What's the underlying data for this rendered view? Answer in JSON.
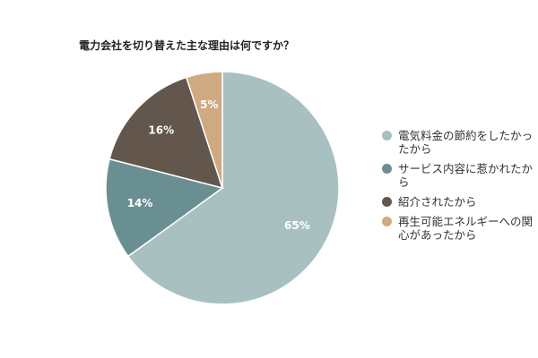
{
  "chart_data": {
    "type": "pie",
    "title": "電力会社を切り替えた主な理由は何ですか？",
    "legend_position": "right",
    "slices": [
      {
        "label": "電気料金の節約をしたかったから",
        "value": 65,
        "value_label": "65%",
        "color": "#a9c0c0"
      },
      {
        "label": "サービス内容に惹かれたから",
        "value": 14,
        "value_label": "14%",
        "color": "#6a8f93"
      },
      {
        "label": "紹介されたから",
        "value": 16,
        "value_label": "16%",
        "color": "#63574d"
      },
      {
        "label": "再生可能エネルギーへの関心があったから",
        "value": 5,
        "value_label": "5%",
        "color": "#cfa982"
      }
    ]
  }
}
